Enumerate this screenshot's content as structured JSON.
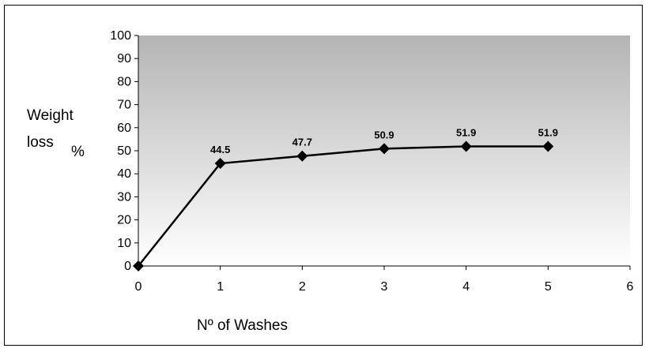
{
  "chart_data": {
    "type": "line",
    "x": [
      0,
      1,
      2,
      3,
      4,
      5
    ],
    "series": [
      {
        "values": [
          0,
          44.5,
          47.7,
          50.9,
          51.9,
          51.9
        ]
      }
    ],
    "data_labels": [
      "",
      "44.5",
      "47.7",
      "50.9",
      "51.9",
      "51.9"
    ],
    "xlabel": "Nº of Washes",
    "ylabel_line1": "Weight",
    "ylabel_line2": "loss",
    "ylabel_unit": "%",
    "xlim": [
      0,
      6
    ],
    "ylim": [
      0,
      100
    ],
    "x_ticks": [
      "0",
      "1",
      "2",
      "3",
      "4",
      "5",
      "6"
    ],
    "y_ticks": [
      "0",
      "10",
      "20",
      "30",
      "40",
      "50",
      "60",
      "70",
      "80",
      "90",
      "100"
    ],
    "grid": false,
    "legend": "none",
    "plot_background": "gradient grey to white",
    "line_color": "#000000"
  }
}
